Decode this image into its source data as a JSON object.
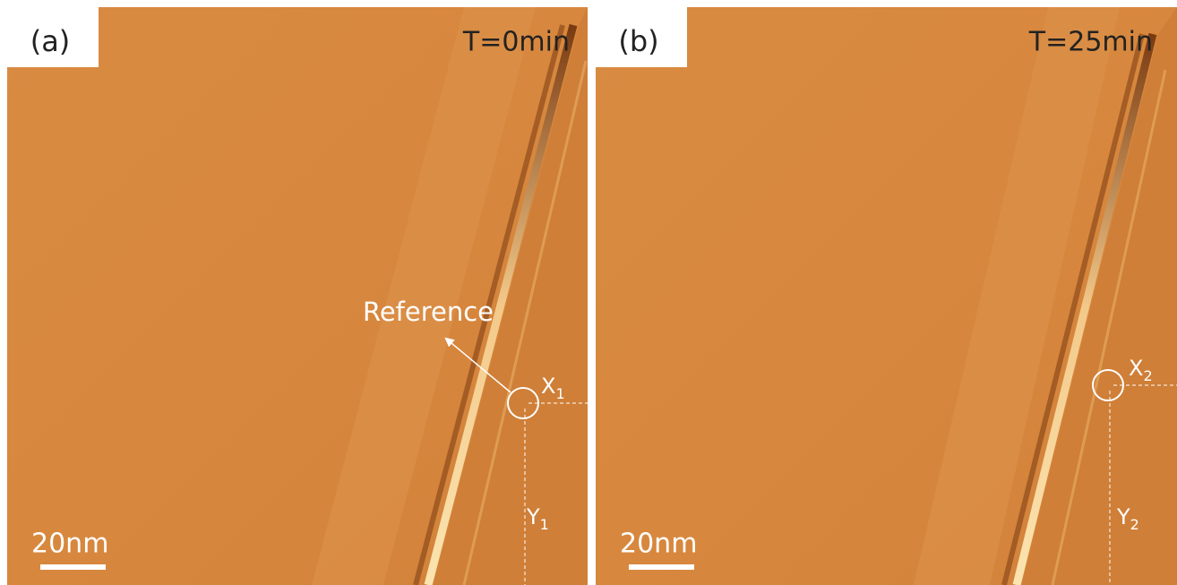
{
  "panels": [
    {
      "label": "(a)",
      "time": "T=0min",
      "scale": "20nm",
      "reference": "Reference",
      "x_label": "X",
      "x_sub": "1",
      "y_label": "Y",
      "y_sub": "1"
    },
    {
      "label": "(b)",
      "time": "T=25min",
      "scale": "20nm",
      "x_label": "X",
      "x_sub": "2",
      "y_label": "Y",
      "y_sub": "2"
    }
  ]
}
